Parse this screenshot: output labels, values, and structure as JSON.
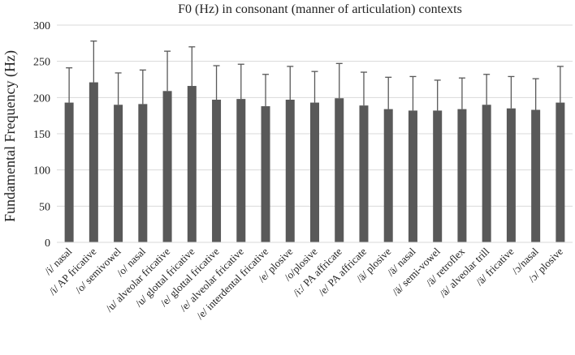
{
  "chart_data": {
    "type": "bar",
    "title": "F0 (Hz) in consonant (manner of articulation) contexts",
    "xlabel": "",
    "ylabel": "Fundamental Frequency (Hz)",
    "ylim": [
      0,
      300
    ],
    "yticks": [
      0,
      50,
      100,
      150,
      200,
      250,
      300
    ],
    "grid": true,
    "legend": "none",
    "bar_color": "#595959",
    "error_bar_color": "#595959",
    "gridline_color": "#d9d9d9",
    "categories": [
      "/i/ nasal",
      "/i/ AP fricative",
      "/o/ semivowel",
      "/o/ nasal",
      "/u/ alveolar fricative",
      "/u/ glottal fricative",
      "/e/ glottal fricative",
      "/e/ alveolar fricative",
      "/e/ interdental fricative",
      "/e/ plosive",
      "/o/plosive",
      "/i:/ PA affricate",
      "/e/ PA affricate",
      "/ä/ plosive",
      "/ä/ nasal",
      "/ä/ semi-vowel",
      "/ä/ retroflex",
      "/ä/ alveolar trill",
      "/ä/ fricative",
      "/ɔ/nasal",
      "/ɔ/ plosive"
    ],
    "values": [
      193,
      221,
      190,
      191,
      209,
      216,
      197,
      198,
      188,
      197,
      193,
      199,
      189,
      184,
      182,
      182,
      184,
      190,
      185,
      183,
      193
    ],
    "error_upper": [
      241,
      278,
      234,
      238,
      264,
      270,
      244,
      246,
      232,
      243,
      236,
      247,
      235,
      228,
      229,
      224,
      227,
      232,
      229,
      226,
      243
    ]
  }
}
